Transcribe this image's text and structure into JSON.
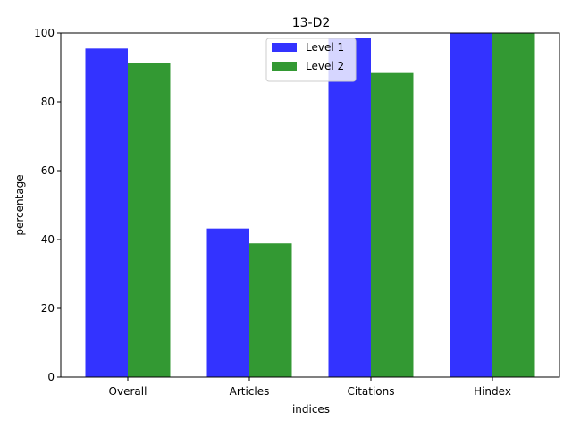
{
  "chart_data": {
    "type": "bar",
    "title": "13-D2",
    "xlabel": "indices",
    "ylabel": "percentage",
    "categories": [
      "Overall",
      "Articles",
      "Citations",
      "Hindex"
    ],
    "ylim": [
      0,
      100
    ],
    "yticks": [
      0,
      20,
      40,
      60,
      80,
      100
    ],
    "grid": false,
    "legend_position": "upper center",
    "series": [
      {
        "name": "Level 1",
        "color": "#3333ff",
        "values": [
          95.5,
          43.2,
          98.6,
          100
        ]
      },
      {
        "name": "Level 2",
        "color": "#339933",
        "values": [
          91.2,
          38.9,
          88.4,
          100
        ]
      }
    ]
  }
}
